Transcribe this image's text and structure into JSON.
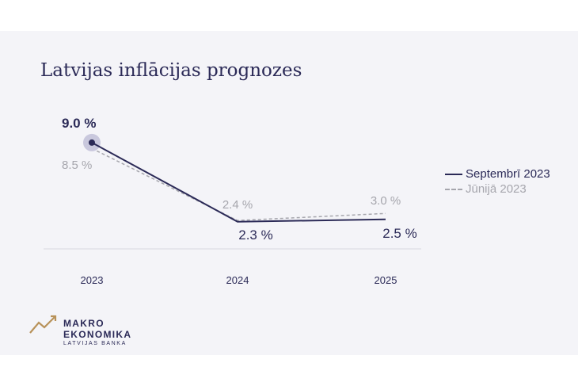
{
  "chart_data": {
    "type": "line",
    "title": "Latvijas inflācijas prognozes",
    "categories": [
      "2023",
      "2024",
      "2025"
    ],
    "series": [
      {
        "name": "Septembrī 2023",
        "values": [
          9.0,
          2.3,
          2.5
        ],
        "labels": [
          "9.0 %",
          "2.3 %",
          "2.5 %"
        ],
        "color": "#2b2a57",
        "style": "solid"
      },
      {
        "name": "Jūnijā 2023",
        "values": [
          8.5,
          2.4,
          3.0
        ],
        "labels": [
          "8.5 %",
          "2.4 %",
          "3.0 %"
        ],
        "color": "#a6a6ad",
        "style": "dashed"
      }
    ],
    "ylim": [
      0,
      10
    ],
    "grid": false,
    "legend_position": "right"
  },
  "logo": {
    "line1": "MAKRO",
    "line2": "EKONOMIKA",
    "line3": "LATVIJAS BANKA",
    "accent_color": "#b8925a",
    "icon": "chart-arrow-icon"
  },
  "colors": {
    "background": "#f4f4f8",
    "primary": "#2b2a57",
    "secondary": "#a6a6ad"
  }
}
